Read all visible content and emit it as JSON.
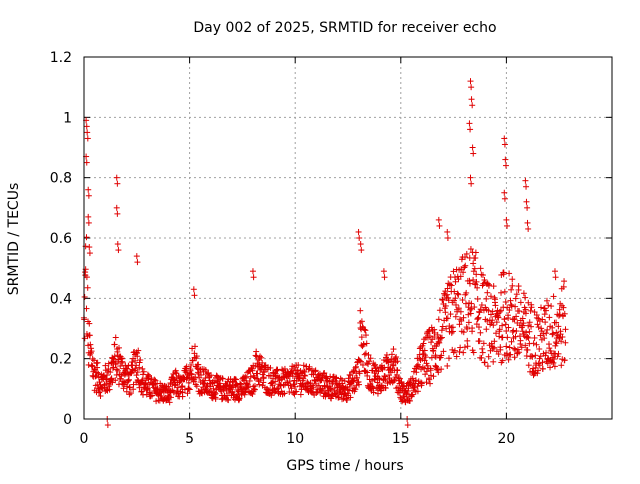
{
  "chart_data": {
    "type": "scatter",
    "title": "Day 002 of 2025, SRMTID for receiver echo",
    "xlabel": "GPS time / hours",
    "ylabel": "SRMTID / TECUs",
    "xlim": [
      0,
      25
    ],
    "ylim": [
      0,
      1.2
    ],
    "xticks": [
      0,
      5,
      10,
      15,
      20
    ],
    "xtick_labels": [
      "0",
      "5",
      "10",
      "15",
      "20"
    ],
    "yticks": [
      0,
      0.2,
      0.4,
      0.6,
      0.8,
      1.0,
      1.2
    ],
    "ytick_labels": [
      "0",
      "0.2",
      "0.4",
      "0.6",
      "0.8",
      "1",
      "1.2"
    ],
    "grid": true,
    "marker": "+",
    "color": "#e00000",
    "series": [
      {
        "name": "SRMTID",
        "profile_x": [
          0.0,
          0.1,
          0.2,
          0.5,
          0.8,
          1.2,
          1.5,
          1.8,
          2.2,
          2.5,
          2.8,
          3.2,
          3.6,
          4.0,
          4.3,
          4.6,
          5.0,
          5.2,
          5.5,
          6.0,
          6.5,
          7.0,
          7.5,
          8.0,
          8.2,
          8.5,
          9.0,
          9.5,
          10.0,
          10.5,
          11.0,
          11.5,
          12.0,
          12.5,
          13.0,
          13.1,
          13.5,
          14.0,
          14.3,
          14.6,
          15.0,
          15.2,
          15.5,
          16.0,
          16.5,
          17.0,
          17.5,
          18.0,
          18.3,
          18.6,
          19.0,
          19.5,
          19.9,
          20.3,
          20.7,
          21.0,
          21.5,
          22.0,
          22.5,
          22.8
        ],
        "profile_y": [
          0.3,
          0.5,
          0.25,
          0.15,
          0.12,
          0.14,
          0.2,
          0.16,
          0.12,
          0.2,
          0.12,
          0.1,
          0.09,
          0.08,
          0.12,
          0.1,
          0.15,
          0.2,
          0.13,
          0.11,
          0.1,
          0.1,
          0.1,
          0.13,
          0.18,
          0.14,
          0.12,
          0.12,
          0.13,
          0.13,
          0.12,
          0.11,
          0.1,
          0.1,
          0.15,
          0.3,
          0.15,
          0.13,
          0.15,
          0.2,
          0.1,
          0.08,
          0.1,
          0.18,
          0.22,
          0.28,
          0.35,
          0.38,
          0.4,
          0.38,
          0.32,
          0.3,
          0.35,
          0.33,
          0.3,
          0.28,
          0.25,
          0.28,
          0.3,
          0.32
        ],
        "spikes": [
          {
            "x": 0.1,
            "y": 0.99
          },
          {
            "x": 0.15,
            "y": 0.95
          },
          {
            "x": 0.1,
            "y": 0.87
          },
          {
            "x": 0.2,
            "y": 0.76
          },
          {
            "x": 0.2,
            "y": 0.67
          },
          {
            "x": 0.25,
            "y": 0.57
          },
          {
            "x": 1.55,
            "y": 0.8
          },
          {
            "x": 1.55,
            "y": 0.7
          },
          {
            "x": 1.6,
            "y": 0.58
          },
          {
            "x": 2.5,
            "y": 0.54
          },
          {
            "x": 5.2,
            "y": 0.43
          },
          {
            "x": 8.0,
            "y": 0.49
          },
          {
            "x": 13.0,
            "y": 0.62
          },
          {
            "x": 13.1,
            "y": 0.58
          },
          {
            "x": 14.2,
            "y": 0.49
          },
          {
            "x": 18.3,
            "y": 1.12
          },
          {
            "x": 18.35,
            "y": 1.06
          },
          {
            "x": 18.25,
            "y": 0.98
          },
          {
            "x": 18.4,
            "y": 0.9
          },
          {
            "x": 18.3,
            "y": 0.8
          },
          {
            "x": 19.9,
            "y": 0.93
          },
          {
            "x": 19.95,
            "y": 0.86
          },
          {
            "x": 19.9,
            "y": 0.75
          },
          {
            "x": 20.0,
            "y": 0.66
          },
          {
            "x": 20.9,
            "y": 0.79
          },
          {
            "x": 20.95,
            "y": 0.72
          },
          {
            "x": 21.0,
            "y": 0.65
          },
          {
            "x": 16.8,
            "y": 0.66
          },
          {
            "x": 17.2,
            "y": 0.62
          },
          {
            "x": 22.3,
            "y": 0.49
          },
          {
            "x": 1.1,
            "y": 0.0
          },
          {
            "x": 15.3,
            "y": 0.0
          }
        ]
      }
    ]
  }
}
